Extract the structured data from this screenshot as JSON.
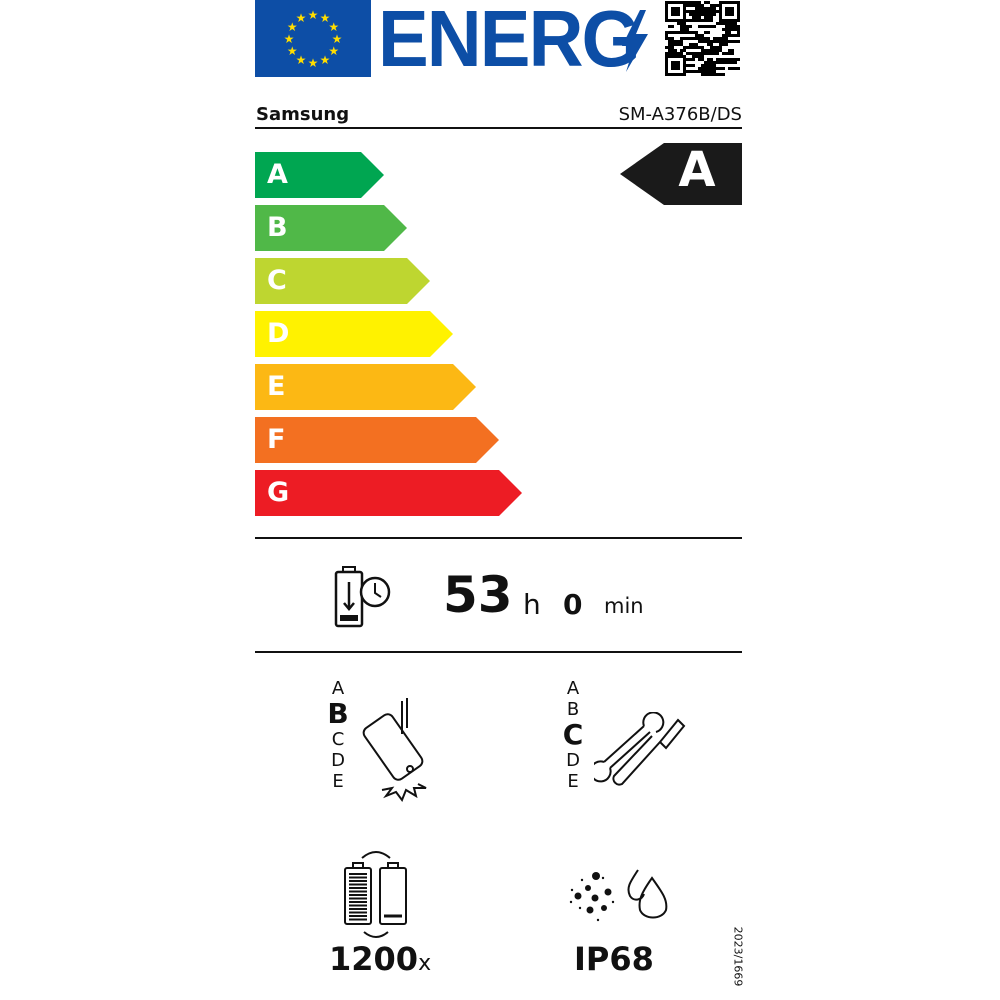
{
  "header": {
    "logo_text": "ENERG",
    "supplier": "Samsung",
    "model": "SM-A376B/DS"
  },
  "energy_scale": [
    {
      "label": "A",
      "color": "#00a651"
    },
    {
      "label": "B",
      "color": "#50b848"
    },
    {
      "label": "C",
      "color": "#bed630"
    },
    {
      "label": "D",
      "color": "#fff200"
    },
    {
      "label": "E",
      "color": "#fcb814"
    },
    {
      "label": "F",
      "color": "#f37021"
    },
    {
      "label": "G",
      "color": "#ed1c24"
    }
  ],
  "energy_class": "A",
  "battery_endurance": {
    "hours": "53",
    "hours_unit": "h",
    "minutes": "0",
    "minutes_unit": "min"
  },
  "drop_reliability": {
    "scale": [
      "A",
      "B",
      "C",
      "D",
      "E"
    ],
    "selected": "B"
  },
  "repairability": {
    "scale": [
      "A",
      "B",
      "C",
      "D",
      "E"
    ],
    "selected": "C"
  },
  "battery_cycles": {
    "value": "1200",
    "unit": "x"
  },
  "ingress_protection": "IP68",
  "regulation": "2023/1669",
  "colors": {
    "eu_blue": "#0d4ea6",
    "eu_star": "#ffdd00"
  }
}
